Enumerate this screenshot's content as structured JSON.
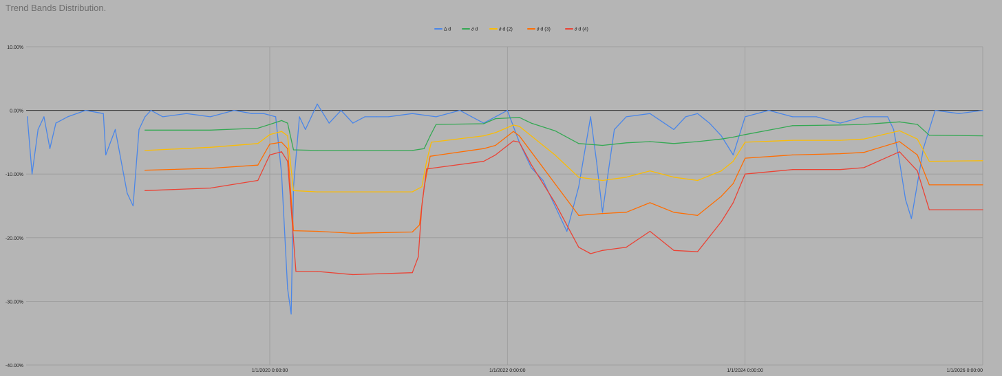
{
  "chart_data": {
    "type": "line",
    "title": "Trend Bands Distribution.",
    "xlabel": "",
    "ylabel": "",
    "ylim": [
      -40,
      10
    ],
    "yticks": [
      {
        "value": 10,
        "label": "10.00%"
      },
      {
        "value": 0,
        "label": "0.00%"
      },
      {
        "value": -10,
        "label": "-10.00%"
      },
      {
        "value": -20,
        "label": "-20.00%"
      },
      {
        "value": -30,
        "label": "-30.00%"
      },
      {
        "value": -40,
        "label": "-40.00%"
      }
    ],
    "xlim": [
      2017.95,
      2026.0
    ],
    "xticks": [
      {
        "value": 2020,
        "label": "1/1/2020 0:00:00"
      },
      {
        "value": 2022,
        "label": "1/1/2022 0:00:00"
      },
      {
        "value": 2024,
        "label": "1/1/2024 0:00:00"
      },
      {
        "value": 2026,
        "label": "1/1/2026 0:00:00"
      }
    ],
    "grid": true,
    "legend_position": "top-center",
    "series": [
      {
        "name": "Δ d",
        "color": "#4a86e8",
        "x": [
          2017.96,
          2018.0,
          2018.05,
          2018.1,
          2018.15,
          2018.2,
          2018.3,
          2018.45,
          2018.6,
          2018.62,
          2018.7,
          2018.8,
          2018.85,
          2018.9,
          2018.95,
          2019.0,
          2019.1,
          2019.3,
          2019.5,
          2019.7,
          2019.85,
          2019.95,
          2020.05,
          2020.1,
          2020.15,
          2020.18,
          2020.2,
          2020.25,
          2020.3,
          2020.4,
          2020.5,
          2020.6,
          2020.7,
          2020.8,
          2020.9,
          2021.0,
          2021.2,
          2021.4,
          2021.6,
          2021.7,
          2021.8,
          2021.9,
          2022.0,
          2022.1,
          2022.2,
          2022.3,
          2022.4,
          2022.5,
          2022.6,
          2022.7,
          2022.75,
          2022.8,
          2022.9,
          2023.0,
          2023.2,
          2023.4,
          2023.5,
          2023.6,
          2023.7,
          2023.8,
          2023.9,
          2024.0,
          2024.2,
          2024.4,
          2024.6,
          2024.8,
          2025.0,
          2025.2,
          2025.25,
          2025.3,
          2025.35,
          2025.4,
          2025.5,
          2025.6,
          2025.8,
          2026.0
        ],
        "values": [
          -1,
          -10,
          -3,
          -1,
          -6,
          -2,
          -1,
          0,
          -0.5,
          -7,
          -3,
          -13,
          -15,
          -3,
          -1,
          0,
          -1,
          -0.5,
          -1,
          0,
          -0.5,
          -0.5,
          -1,
          -10,
          -28,
          -32,
          -12,
          -1,
          -3,
          1,
          -2,
          0,
          -2,
          -1,
          -1,
          -1,
          -0.5,
          -1,
          0,
          -1,
          -2,
          -1,
          0,
          -5,
          -9,
          -11,
          -15,
          -19,
          -12,
          -1,
          -8,
          -16,
          -3,
          -1,
          -0.5,
          -3,
          -1,
          -0.5,
          -2,
          -4,
          -7,
          -1,
          0,
          -1,
          -1,
          -2,
          -1,
          -1,
          -3,
          -8,
          -14,
          -17,
          -6,
          0,
          -0.5,
          0
        ]
      },
      {
        "name": "∂ d",
        "color": "#34a853",
        "x": [
          2018.95,
          2019.5,
          2019.9,
          2020.0,
          2020.1,
          2020.15,
          2020.2,
          2020.4,
          2020.7,
          2021.2,
          2021.3,
          2021.35,
          2021.4,
          2021.8,
          2021.9,
          2022.1,
          2022.2,
          2022.4,
          2022.6,
          2022.8,
          2023.0,
          2023.2,
          2023.4,
          2023.6,
          2023.8,
          2023.9,
          2024.0,
          2024.4,
          2024.8,
          2025.0,
          2025.3,
          2025.45,
          2025.55,
          2026.0
        ],
        "values": [
          -3.1,
          -3.1,
          -2.8,
          -2.2,
          -1.6,
          -2.0,
          -6.2,
          -6.3,
          -6.3,
          -6.3,
          -6.0,
          -4.0,
          -2.2,
          -2.1,
          -1.3,
          -1.1,
          -2.0,
          -3.2,
          -5.2,
          -5.5,
          -5.1,
          -4.9,
          -5.2,
          -4.9,
          -4.5,
          -4.2,
          -3.8,
          -2.4,
          -2.3,
          -2.2,
          -1.8,
          -2.2,
          -3.9,
          -4.0
        ]
      },
      {
        "name": "∂ d (2)",
        "color": "#fbbc04",
        "x": [
          2018.95,
          2019.5,
          2019.9,
          2020.0,
          2020.1,
          2020.15,
          2020.2,
          2020.4,
          2020.7,
          2021.2,
          2021.28,
          2021.32,
          2021.36,
          2021.8,
          2021.9,
          2022.05,
          2022.1,
          2022.2,
          2022.4,
          2022.6,
          2022.8,
          2023.0,
          2023.2,
          2023.4,
          2023.6,
          2023.8,
          2023.9,
          2024.0,
          2024.4,
          2024.8,
          2025.0,
          2025.3,
          2025.45,
          2025.55,
          2026.0
        ],
        "values": [
          -6.3,
          -5.8,
          -5.2,
          -3.8,
          -3.3,
          -4.0,
          -12.6,
          -12.8,
          -12.8,
          -12.8,
          -12.0,
          -8.0,
          -5.0,
          -4.0,
          -3.5,
          -2.3,
          -2.5,
          -4.0,
          -7.0,
          -10.5,
          -11.0,
          -10.5,
          -9.5,
          -10.5,
          -11.0,
          -9.5,
          -8.0,
          -5.0,
          -4.7,
          -4.7,
          -4.5,
          -3.2,
          -4.5,
          -8.0,
          -7.9
        ]
      },
      {
        "name": "∂ d (3)",
        "color": "#ff6d01",
        "x": [
          2018.95,
          2019.5,
          2019.9,
          2020.0,
          2020.1,
          2020.15,
          2020.2,
          2020.4,
          2020.7,
          2021.2,
          2021.26,
          2021.3,
          2021.35,
          2021.8,
          2021.9,
          2022.05,
          2022.1,
          2022.2,
          2022.4,
          2022.6,
          2022.8,
          2023.0,
          2023.2,
          2023.4,
          2023.6,
          2023.8,
          2023.9,
          2024.0,
          2024.4,
          2024.8,
          2025.0,
          2025.3,
          2025.45,
          2025.55,
          2026.0
        ],
        "values": [
          -9.4,
          -9.1,
          -8.6,
          -5.3,
          -5.0,
          -6.0,
          -18.9,
          -19.0,
          -19.3,
          -19.1,
          -18.0,
          -12.0,
          -7.2,
          -6.0,
          -5.5,
          -3.3,
          -4.0,
          -6.5,
          -11.5,
          -16.5,
          -16.2,
          -16.0,
          -14.5,
          -16.0,
          -16.5,
          -13.5,
          -11.5,
          -7.5,
          -7.0,
          -6.8,
          -6.6,
          -4.9,
          -7.0,
          -11.7,
          -11.7
        ]
      },
      {
        "name": "∂ d (4)",
        "color": "#ea4335",
        "x": [
          2018.95,
          2019.5,
          2019.9,
          2020.0,
          2020.1,
          2020.15,
          2020.22,
          2020.4,
          2020.7,
          2021.2,
          2021.25,
          2021.28,
          2021.32,
          2021.8,
          2021.9,
          2022.05,
          2022.1,
          2022.2,
          2022.4,
          2022.6,
          2022.7,
          2022.8,
          2023.0,
          2023.2,
          2023.4,
          2023.6,
          2023.8,
          2023.9,
          2024.0,
          2024.4,
          2024.8,
          2025.0,
          2025.3,
          2025.45,
          2025.55,
          2026.0
        ],
        "values": [
          -12.6,
          -12.2,
          -11.0,
          -7.0,
          -6.5,
          -8.0,
          -25.3,
          -25.3,
          -25.8,
          -25.5,
          -23.0,
          -15.0,
          -9.2,
          -8.0,
          -7.0,
          -4.8,
          -5.0,
          -8.5,
          -14.5,
          -21.5,
          -22.5,
          -22.0,
          -21.5,
          -19.0,
          -22.0,
          -22.2,
          -17.5,
          -14.5,
          -10.0,
          -9.3,
          -9.3,
          -9.0,
          -6.5,
          -9.5,
          -15.6,
          -15.6
        ]
      }
    ]
  }
}
